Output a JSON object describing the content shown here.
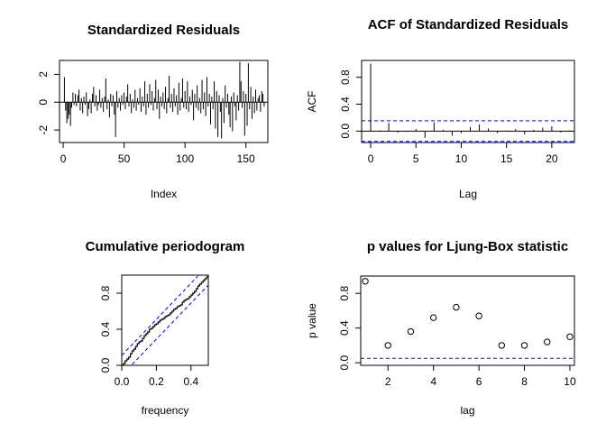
{
  "chart_data": [
    {
      "type": "line",
      "title": "Standardized Residuals",
      "xlabel": "Index",
      "ylabel": "",
      "xlim": [
        -3,
        168
      ],
      "ylim": [
        -2.9,
        3.0
      ],
      "xticks": [
        "0",
        "50",
        "100",
        "150"
      ],
      "yticks": [
        "-2",
        "0",
        "2"
      ],
      "style": "histogram-spikes",
      "reference_line": 0,
      "n": 165,
      "y": [
        1.8,
        -0.6,
        -1.5,
        -1.2,
        -0.9,
        -1.7,
        -0.4,
        0.7,
        -0.2,
        0.6,
        -0.3,
        0.5,
        0.9,
        -0.6,
        0.3,
        -0.8,
        0.4,
        -0.2,
        0.7,
        -1.0,
        -0.5,
        0.2,
        -0.8,
        0.6,
        1.1,
        -0.3,
        0.5,
        -0.6,
        -0.2,
        0.9,
        -0.4,
        0.3,
        -0.7,
        0.4,
        1.7,
        -0.5,
        0.2,
        -1.1,
        0.6,
        -0.3,
        0.5,
        -0.9,
        -2.5,
        0.8,
        -0.4,
        0.3,
        -0.6,
        0.5,
        -0.2,
        0.7,
        -0.5,
        0.4,
        1.3,
        -0.3,
        0.6,
        -0.8,
        0.2,
        -0.4,
        0.9,
        -0.6,
        0.3,
        -0.2,
        1.0,
        -0.7,
        0.4,
        -0.3,
        1.5,
        -0.9,
        0.6,
        -0.4,
        1.3,
        -0.2,
        0.8,
        -0.6,
        0.3,
        1.6,
        -0.5,
        0.9,
        -1.2,
        0.4,
        -0.3,
        0.7,
        -0.5,
        1.1,
        -0.8,
        0.3,
        1.9,
        -0.4,
        0.6,
        -0.7,
        1.0,
        -0.3,
        0.5,
        -0.9,
        1.4,
        -0.6,
        0.3,
        1.7,
        -0.4,
        0.8,
        -0.5,
        1.5,
        -0.7,
        0.4,
        -0.2,
        0.9,
        -1.3,
        0.6,
        -0.4,
        1.2,
        -0.6,
        0.3,
        -0.8,
        1.6,
        -0.5,
        0.7,
        -1.0,
        1.8,
        -0.3,
        0.6,
        -1.6,
        0.4,
        -0.5,
        1.5,
        -1.9,
        0.8,
        -2.5,
        0.5,
        -0.7,
        -2.6,
        0.3,
        -1.5,
        1.2,
        -0.4,
        0.6,
        -0.9,
        -1.8,
        0.4,
        -2.1,
        0.7,
        -0.3,
        -1.3,
        0.5,
        -0.6,
        2.9,
        1.5,
        -0.4,
        0.8,
        -2.4,
        0.6,
        -1.7,
        2.8,
        -0.5,
        1.1,
        -1.2,
        0.4,
        -0.8,
        0.9,
        -0.6,
        0.3,
        0.5,
        -0.7,
        0.8,
        0.6,
        -0.3
      ]
    },
    {
      "type": "bar",
      "title": "ACF of Standardized Residuals",
      "xlabel": "Lag",
      "ylabel": "ACF",
      "xlim": [
        -1,
        22.5
      ],
      "ylim": [
        -0.17,
        1.05
      ],
      "xticks": [
        "0",
        "5",
        "10",
        "15",
        "20"
      ],
      "yticks": [
        "0.0",
        "0.4",
        "0.8"
      ],
      "confidence_bounds": [
        -0.153,
        0.153
      ],
      "lags": [
        0,
        1,
        2,
        3,
        4,
        5,
        6,
        7,
        8,
        9,
        10,
        11,
        12,
        13,
        14,
        15,
        16,
        17,
        18,
        19,
        20,
        21,
        22
      ],
      "values": [
        1.0,
        0.01,
        0.12,
        -0.02,
        -0.01,
        0.03,
        -0.1,
        0.13,
        0.02,
        -0.07,
        -0.03,
        0.06,
        0.1,
        0.04,
        -0.03,
        0.01,
        0.03,
        -0.05,
        0.02,
        0.05,
        0.07,
        -0.02,
        0.01
      ]
    },
    {
      "type": "line",
      "title": "Cumulative periodogram",
      "xlabel": "frequency",
      "ylabel": "",
      "xlim": [
        0,
        0.5
      ],
      "ylim": [
        0,
        1
      ],
      "xticks": [
        "0.0",
        "0.2",
        "0.4"
      ],
      "yticks": [
        "0.0",
        "0.4",
        "0.8"
      ],
      "band_offset": 0.11,
      "x": [
        0,
        0.01,
        0.02,
        0.03,
        0.04,
        0.05,
        0.06,
        0.07,
        0.08,
        0.09,
        0.1,
        0.11,
        0.12,
        0.13,
        0.14,
        0.15,
        0.16,
        0.17,
        0.18,
        0.19,
        0.2,
        0.21,
        0.22,
        0.23,
        0.24,
        0.25,
        0.26,
        0.27,
        0.28,
        0.29,
        0.3,
        0.31,
        0.32,
        0.33,
        0.34,
        0.35,
        0.36,
        0.37,
        0.38,
        0.39,
        0.4,
        0.41,
        0.42,
        0.43,
        0.44,
        0.45,
        0.46,
        0.47,
        0.48,
        0.49,
        0.5
      ],
      "y": [
        0,
        0.02,
        0.05,
        0.07,
        0.09,
        0.13,
        0.16,
        0.18,
        0.21,
        0.24,
        0.26,
        0.27,
        0.3,
        0.33,
        0.35,
        0.37,
        0.4,
        0.41,
        0.43,
        0.45,
        0.46,
        0.48,
        0.5,
        0.51,
        0.52,
        0.54,
        0.55,
        0.56,
        0.58,
        0.6,
        0.62,
        0.63,
        0.65,
        0.66,
        0.67,
        0.7,
        0.72,
        0.73,
        0.74,
        0.76,
        0.78,
        0.8,
        0.82,
        0.85,
        0.88,
        0.9,
        0.92,
        0.94,
        0.96,
        0.98,
        1.0
      ]
    },
    {
      "type": "scatter",
      "title": "p values for Ljung-Box statistic",
      "xlabel": "lag",
      "ylabel": "p value",
      "xlim": [
        0.8,
        10.2
      ],
      "ylim": [
        -0.03,
        1.0
      ],
      "xticks": [
        "2",
        "4",
        "6",
        "8",
        "10"
      ],
      "yticks": [
        "0.0",
        "0.4",
        "0.8"
      ],
      "reference_line": 0.05,
      "x": [
        1,
        2,
        3,
        4,
        5,
        6,
        7,
        8,
        9,
        10
      ],
      "y": [
        0.94,
        0.2,
        0.36,
        0.52,
        0.64,
        0.54,
        0.2,
        0.2,
        0.24,
        0.3
      ]
    }
  ],
  "colors": {
    "axis": "#000000",
    "ref_line": "#0000ff",
    "series": "#000000"
  }
}
